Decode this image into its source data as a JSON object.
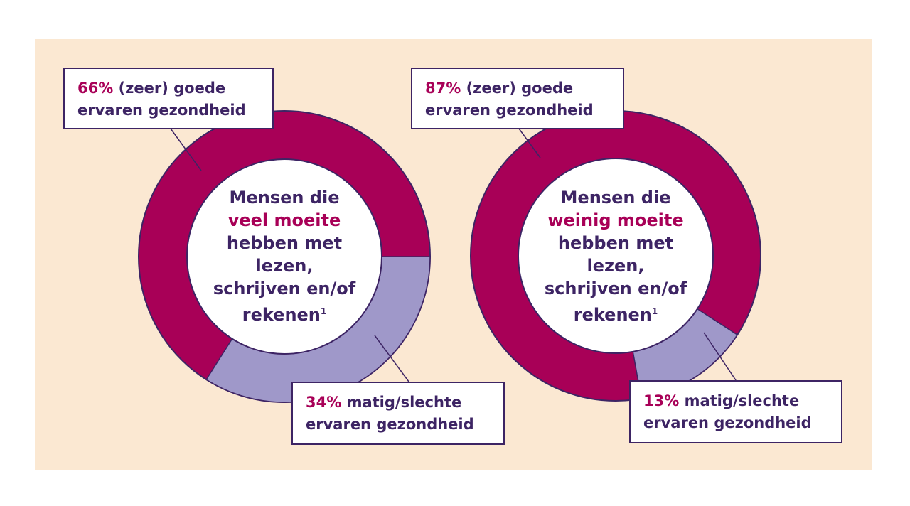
{
  "colors": {
    "background": "#FBE8D2",
    "good": "#A80057",
    "poor": "#9F98C9",
    "text": "#3D2464"
  },
  "chart_data": [
    {
      "type": "pie",
      "donut": true,
      "center_text": {
        "line1": "Mensen die",
        "highlight": "veel moeite",
        "line3": "hebben met",
        "line4": "lezen,",
        "line5": "schrijven en/of",
        "line6": "rekenen",
        "footnote": "1"
      },
      "slices": [
        {
          "value": 66,
          "pct_label": "66%",
          "label": "(zeer) goede",
          "label2": "ervaren gezondheid",
          "color": "#A80057"
        },
        {
          "value": 34,
          "pct_label": "34%",
          "label": "matig/slechte",
          "label2": "ervaren gezondheid",
          "color": "#9F98C9"
        }
      ]
    },
    {
      "type": "pie",
      "donut": true,
      "center_text": {
        "line1": "Mensen die",
        "highlight": "weinig moeite",
        "line3": "hebben met",
        "line4": "lezen,",
        "line5": "schrijven en/of",
        "line6": "rekenen",
        "footnote": "1"
      },
      "slices": [
        {
          "value": 87,
          "pct_label": "87%",
          "label": "(zeer) goede",
          "label2": "ervaren gezondheid",
          "color": "#A80057"
        },
        {
          "value": 13,
          "pct_label": "13%",
          "label": "matig/slechte",
          "label2": "ervaren gezondheid",
          "color": "#9F98C9"
        }
      ]
    }
  ]
}
